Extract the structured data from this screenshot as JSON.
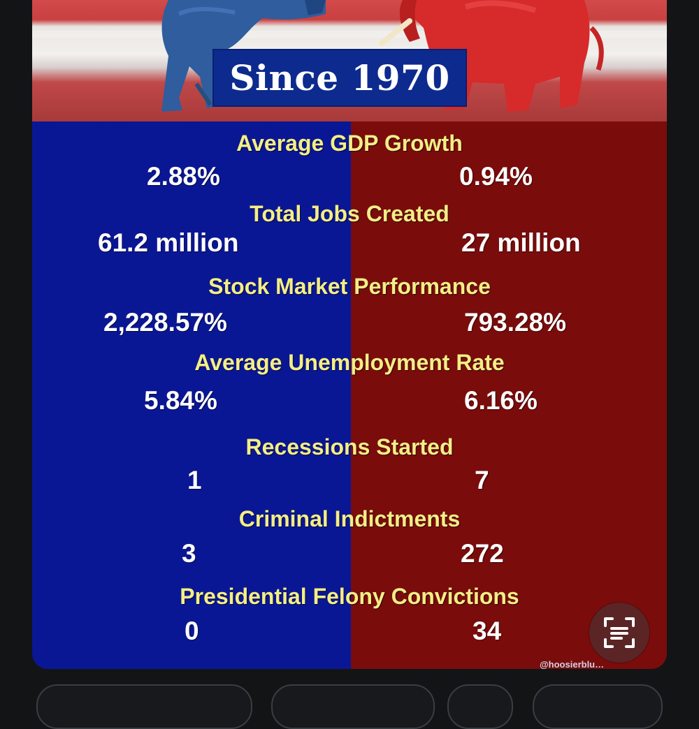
{
  "title": "Since 1970",
  "stats": [
    {
      "label": "Average GDP Growth",
      "left": "2.88%",
      "right": "0.94%"
    },
    {
      "label": "Total Jobs Created",
      "left": "61.2 million",
      "right": "27 million"
    },
    {
      "label": "Stock Market Performance",
      "left": "2,228.57%",
      "right": "793.28%"
    },
    {
      "label": "Average Unemployment Rate",
      "left": "5.84%",
      "right": "6.16%"
    },
    {
      "label": "Recessions Started",
      "left": "1",
      "right": "7"
    },
    {
      "label": "Criminal Indictments",
      "left": "3",
      "right": "272"
    },
    {
      "label": "Presidential Felony Convictions",
      "left": "0",
      "right": "34"
    }
  ],
  "watermark": "@hoosierblu…",
  "icons": {
    "donkey": "donkey-figure",
    "elephant": "elephant-figure",
    "lens": "text-scan-icon"
  },
  "colors": {
    "blue": "#0a1795",
    "red": "#7a0c0c",
    "label_yellow": "#f4ee86",
    "value_white": "#ffffff",
    "background": "#121416"
  }
}
